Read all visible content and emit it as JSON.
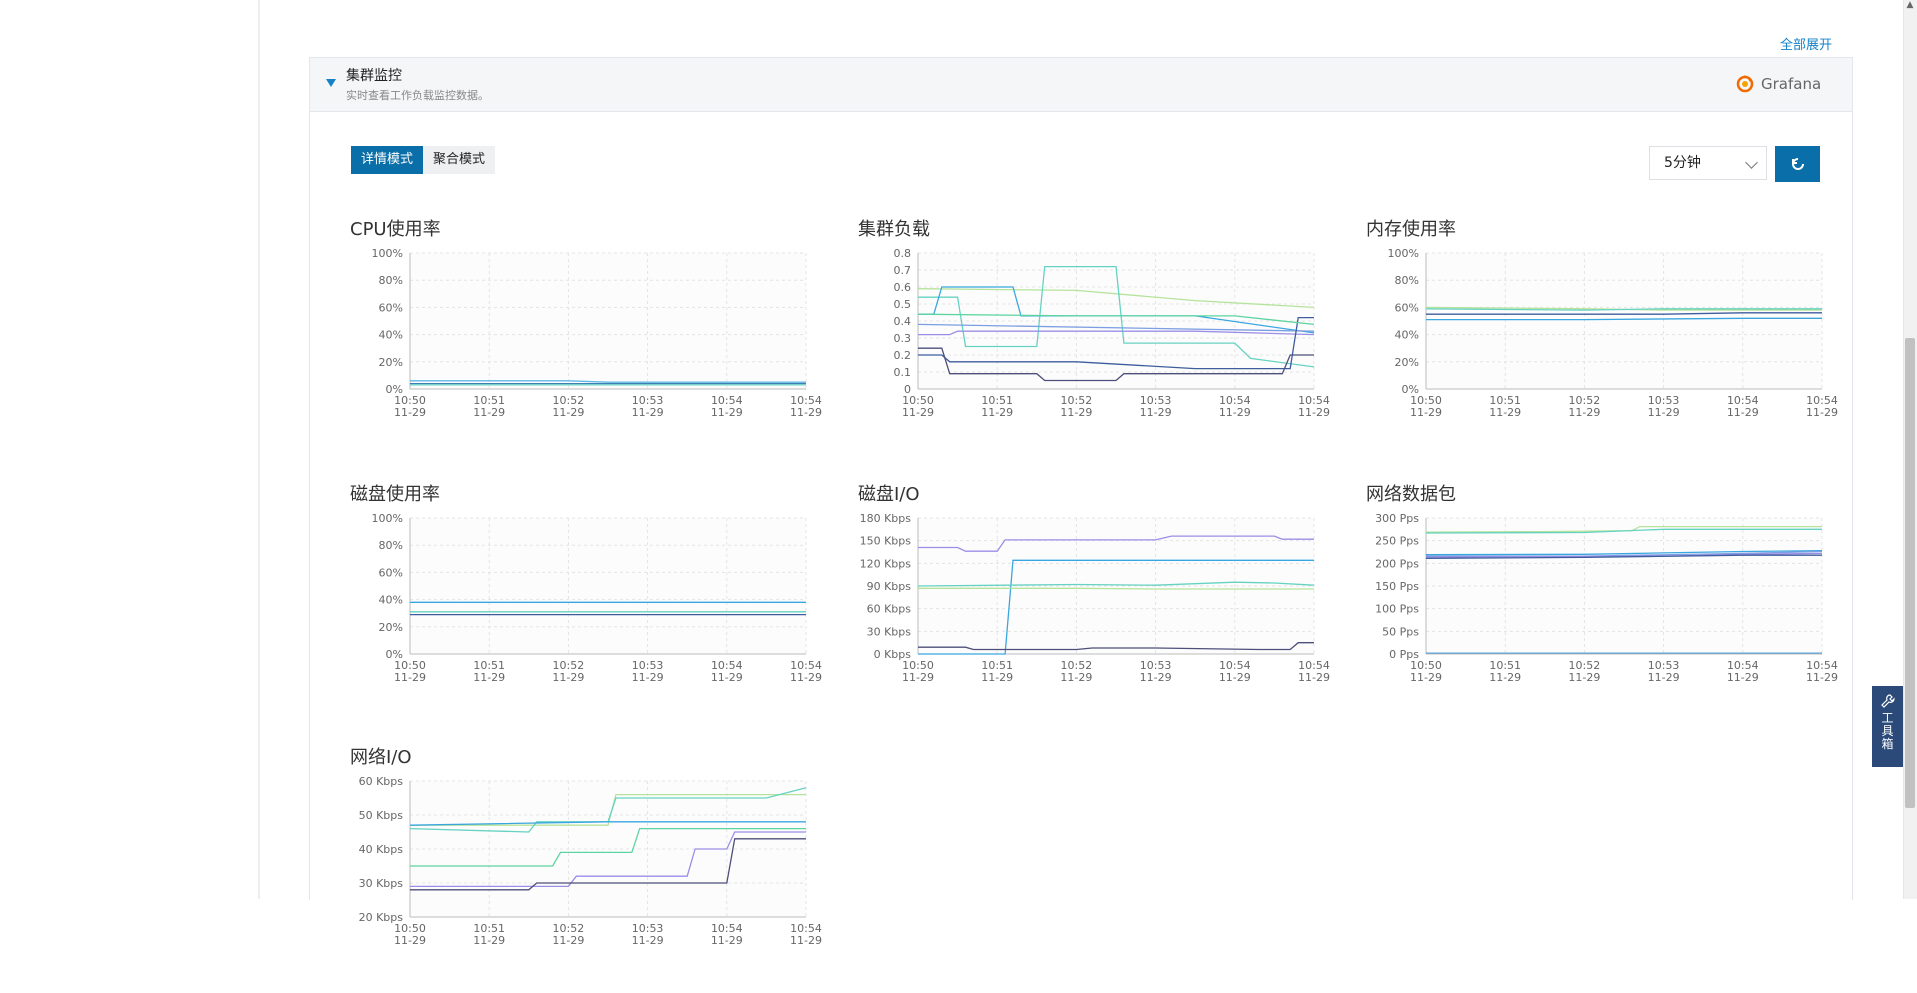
{
  "header": {
    "expand_all": "全部展开"
  },
  "section": {
    "title": "集群监控",
    "subtitle": "实时查看工作负载监控数据。",
    "grafana_label": "Grafana"
  },
  "modes": {
    "detail": "详情模式",
    "aggregate": "聚合模式",
    "active": "detail"
  },
  "time_range": {
    "selected": "5分钟"
  },
  "toolbox": {
    "label_1": "工",
    "label_2": "具",
    "label_3": "箱"
  },
  "colors": {
    "accent": "#0a6ea8",
    "link": "#1582c8",
    "grafana": "#f46800"
  },
  "icons": {
    "collapse": "caret-down-icon",
    "grafana": "grafana-logo-icon",
    "refresh": "refresh-icon",
    "dropdown": "chevron-down-icon",
    "toolbox": "wrench-icon"
  },
  "chart_data": [
    {
      "id": "cpu",
      "type": "line",
      "title": "CPU使用率",
      "x": [
        "10:50 11-29",
        "10:51 11-29",
        "10:52 11-29",
        "10:53 11-29",
        "10:54 11-29",
        "10:54 11-29"
      ],
      "yticks": [
        "100%",
        "80%",
        "60%",
        "40%",
        "20%",
        "0%"
      ],
      "ylim": [
        0,
        100
      ],
      "series": [
        {
          "color": "#5fb7e6",
          "points": [
            [
              0,
              6
            ],
            [
              1,
              6
            ],
            [
              2,
              6
            ],
            [
              2.5,
              5
            ],
            [
              3,
              5
            ],
            [
              4,
              5
            ],
            [
              5,
              5
            ]
          ]
        },
        {
          "color": "#3c7fb0",
          "points": [
            [
              0,
              4
            ],
            [
              1,
              4
            ],
            [
              2,
              4
            ],
            [
              3,
              4
            ],
            [
              4,
              4
            ],
            [
              5,
              4
            ]
          ]
        },
        {
          "color": "#6fd5c8",
          "points": [
            [
              0,
              3
            ],
            [
              1,
              3
            ],
            [
              2,
              3
            ],
            [
              3,
              3
            ],
            [
              4,
              3
            ],
            [
              5,
              3
            ]
          ]
        }
      ]
    },
    {
      "id": "load",
      "type": "line",
      "title": "集群负载",
      "x": [
        "10:50 11-29",
        "10:51 11-29",
        "10:52 11-29",
        "10:53 11-29",
        "10:54 11-29",
        "10:54 11-29"
      ],
      "yticks": [
        "0.8",
        "0.7",
        "0.6",
        "0.5",
        "0.4",
        "0.3",
        "0.2",
        "0.1",
        "0"
      ],
      "ylim": [
        0,
        0.8
      ],
      "series": [
        {
          "color": "#b6e39b",
          "points": [
            [
              0,
              0.59
            ],
            [
              2,
              0.58
            ],
            [
              3.5,
              0.52
            ],
            [
              5,
              0.48
            ]
          ]
        },
        {
          "color": "#66d2c2",
          "points": [
            [
              0,
              0.54
            ],
            [
              0.5,
              0.54
            ],
            [
              0.6,
              0.25
            ],
            [
              1.5,
              0.25
            ],
            [
              1.6,
              0.72
            ],
            [
              2.5,
              0.72
            ],
            [
              2.6,
              0.27
            ],
            [
              4,
              0.27
            ],
            [
              4.2,
              0.18
            ],
            [
              5,
              0.13
            ]
          ]
        },
        {
          "color": "#3aa6e0",
          "points": [
            [
              0,
              0.44
            ],
            [
              0.2,
              0.44
            ],
            [
              0.3,
              0.6
            ],
            [
              1.2,
              0.6
            ],
            [
              1.3,
              0.43
            ],
            [
              3.5,
              0.43
            ],
            [
              5,
              0.33
            ]
          ]
        },
        {
          "color": "#7c9ee2",
          "points": [
            [
              0,
              0.38
            ],
            [
              5,
              0.34
            ]
          ]
        },
        {
          "color": "#9a8ee6",
          "points": [
            [
              0,
              0.32
            ],
            [
              0.4,
              0.32
            ],
            [
              0.5,
              0.34
            ],
            [
              2,
              0.34
            ],
            [
              3.5,
              0.34
            ],
            [
              5,
              0.32
            ]
          ]
        },
        {
          "color": "#3e5d9e",
          "points": [
            [
              0,
              0.2
            ],
            [
              0.3,
              0.2
            ],
            [
              0.4,
              0.16
            ],
            [
              2,
              0.16
            ],
            [
              3.5,
              0.12
            ],
            [
              4.7,
              0.12
            ],
            [
              4.8,
              0.42
            ],
            [
              5,
              0.42
            ]
          ]
        },
        {
          "color": "#4d4f7a",
          "points": [
            [
              0,
              0.24
            ],
            [
              0.3,
              0.24
            ],
            [
              0.4,
              0.09
            ],
            [
              1.5,
              0.09
            ],
            [
              1.6,
              0.05
            ],
            [
              2.5,
              0.05
            ],
            [
              2.6,
              0.09
            ],
            [
              4.6,
              0.09
            ],
            [
              4.7,
              0.2
            ],
            [
              5,
              0.2
            ]
          ]
        },
        {
          "color": "#5dd4a0",
          "points": [
            [
              0,
              0.44
            ],
            [
              2,
              0.43
            ],
            [
              4,
              0.43
            ],
            [
              5,
              0.38
            ]
          ]
        }
      ]
    },
    {
      "id": "mem",
      "type": "line",
      "title": "内存使用率",
      "x": [
        "10:50 11-29",
        "10:51 11-29",
        "10:52 11-29",
        "10:53 11-29",
        "10:54 11-29",
        "10:54 11-29"
      ],
      "yticks": [
        "100%",
        "80%",
        "60%",
        "40%",
        "20%",
        "0%"
      ],
      "ylim": [
        0,
        100
      ],
      "series": [
        {
          "color": "#b6e39b",
          "points": [
            [
              0,
              60
            ],
            [
              2,
              59
            ],
            [
              3,
              58
            ],
            [
              4,
              58
            ],
            [
              5,
              58
            ]
          ]
        },
        {
          "color": "#66d2c2",
          "points": [
            [
              0,
              59
            ],
            [
              2,
              58
            ],
            [
              3,
              59
            ],
            [
              4,
              59
            ],
            [
              5,
              59
            ]
          ]
        },
        {
          "color": "#3e5d9e",
          "points": [
            [
              0,
              55
            ],
            [
              3,
              55
            ],
            [
              4,
              56
            ],
            [
              5,
              56
            ]
          ]
        },
        {
          "color": "#3aa6e0",
          "points": [
            [
              0,
              51
            ],
            [
              2,
              51
            ],
            [
              4,
              52
            ],
            [
              5,
              52
            ]
          ]
        }
      ]
    },
    {
      "id": "disk",
      "type": "line",
      "title": "磁盘使用率",
      "x": [
        "10:50 11-29",
        "10:51 11-29",
        "10:52 11-29",
        "10:53 11-29",
        "10:54 11-29",
        "10:54 11-29"
      ],
      "yticks": [
        "100%",
        "80%",
        "60%",
        "40%",
        "20%",
        "0%"
      ],
      "ylim": [
        0,
        100
      ],
      "series": [
        {
          "color": "#3aa6e0",
          "points": [
            [
              0,
              38
            ],
            [
              5,
              38
            ]
          ]
        },
        {
          "color": "#66d2c2",
          "points": [
            [
              0,
              31
            ],
            [
              5,
              31
            ]
          ]
        },
        {
          "color": "#3e5d9e",
          "points": [
            [
              0,
              29
            ],
            [
              5,
              29
            ]
          ]
        }
      ]
    },
    {
      "id": "diskio",
      "type": "line",
      "title": "磁盘I/O",
      "x": [
        "10:50 11-29",
        "10:51 11-29",
        "10:52 11-29",
        "10:53 11-29",
        "10:54 11-29",
        "10:54 11-29"
      ],
      "yticks": [
        "180 Kbps",
        "150 Kbps",
        "120 Kbps",
        "90 Kbps",
        "60 Kbps",
        "30 Kbps",
        "0 Kbps"
      ],
      "ylim": [
        0,
        180
      ],
      "series": [
        {
          "color": "#9a8ee6",
          "points": [
            [
              0,
              141
            ],
            [
              0.5,
              141
            ],
            [
              0.6,
              136
            ],
            [
              1,
              136
            ],
            [
              1.1,
              151
            ],
            [
              3,
              151
            ],
            [
              3.2,
              156
            ],
            [
              4.5,
              156
            ],
            [
              4.6,
              152
            ],
            [
              5,
              152
            ]
          ]
        },
        {
          "color": "#3aa6e0",
          "points": [
            [
              0,
              0
            ],
            [
              1.1,
              0
            ],
            [
              1.2,
              124
            ],
            [
              5,
              124
            ]
          ]
        },
        {
          "color": "#66d2c2",
          "points": [
            [
              0,
              90
            ],
            [
              2,
              92
            ],
            [
              3,
              91
            ],
            [
              4,
              95
            ],
            [
              4.5,
              94
            ],
            [
              5,
              91
            ]
          ]
        },
        {
          "color": "#b6e39b",
          "points": [
            [
              0,
              87
            ],
            [
              2,
              87
            ],
            [
              3,
              86
            ],
            [
              5,
              86
            ]
          ]
        },
        {
          "color": "#4d4f7a",
          "points": [
            [
              0,
              9
            ],
            [
              0.6,
              9
            ],
            [
              0.7,
              6
            ],
            [
              2,
              6
            ],
            [
              2.2,
              8
            ],
            [
              3,
              8
            ],
            [
              4.3,
              6
            ],
            [
              4.7,
              6
            ],
            [
              4.8,
              15
            ],
            [
              5,
              15
            ]
          ]
        }
      ]
    },
    {
      "id": "netpkt",
      "type": "line",
      "title": "网络数据包",
      "x": [
        "10:50 11-29",
        "10:51 11-29",
        "10:52 11-29",
        "10:53 11-29",
        "10:54 11-29",
        "10:54 11-29"
      ],
      "yticks": [
        "300 Pps",
        "250 Pps",
        "200 Pps",
        "150 Pps",
        "100 Pps",
        "50 Pps",
        "0 Pps"
      ],
      "ylim": [
        0,
        300
      ],
      "series": [
        {
          "color": "#b6e39b",
          "points": [
            [
              0,
              269
            ],
            [
              1.5,
              270
            ],
            [
              2.6,
              272
            ],
            [
              2.7,
              281
            ],
            [
              5,
              281
            ]
          ]
        },
        {
          "color": "#66d2c2",
          "points": [
            [
              0,
              267
            ],
            [
              2,
              268
            ],
            [
              3,
              275
            ],
            [
              5,
              275
            ]
          ]
        },
        {
          "color": "#3aa6e0",
          "points": [
            [
              0,
              219
            ],
            [
              2,
              220
            ],
            [
              3,
              223
            ],
            [
              4,
              226
            ],
            [
              5,
              228
            ]
          ]
        },
        {
          "color": "#7c9ee2",
          "points": [
            [
              0,
              216
            ],
            [
              2,
              216
            ],
            [
              4,
              222
            ],
            [
              5,
              226
            ]
          ]
        },
        {
          "color": "#9a8ee6",
          "points": [
            [
              0,
              214
            ],
            [
              3,
              216
            ],
            [
              4,
              220
            ],
            [
              5,
              222
            ]
          ]
        },
        {
          "color": "#3e5d9e",
          "points": [
            [
              0,
              211
            ],
            [
              2,
              213
            ],
            [
              4,
              218
            ],
            [
              5,
              218
            ]
          ]
        },
        {
          "color": "#5fa3d6",
          "points": [
            [
              0,
              2
            ],
            [
              5,
              2
            ]
          ]
        }
      ]
    },
    {
      "id": "netio",
      "type": "line",
      "title": "网络I/O",
      "x": [
        "10:50 11-29",
        "10:51 11-29",
        "10:52 11-29",
        "10:53 11-29",
        "10:54 11-29",
        "10:54 11-29"
      ],
      "yticks": [
        "60 Kbps",
        "50 Kbps",
        "40 Kbps",
        "30 Kbps",
        "20 Kbps"
      ],
      "ylim": [
        20,
        60
      ],
      "series": [
        {
          "color": "#b6e39b",
          "points": [
            [
              0,
              47
            ],
            [
              2.5,
              47
            ],
            [
              2.6,
              56
            ],
            [
              5,
              56
            ]
          ]
        },
        {
          "color": "#66d2c2",
          "points": [
            [
              0,
              46
            ],
            [
              1.5,
              45
            ],
            [
              1.6,
              48
            ],
            [
              2.5,
              48
            ],
            [
              2.6,
              55
            ],
            [
              4,
              55
            ],
            [
              4.5,
              55
            ],
            [
              5,
              58
            ]
          ]
        },
        {
          "color": "#3aa6e0",
          "points": [
            [
              0,
              47
            ],
            [
              2.5,
              48
            ],
            [
              4,
              48
            ],
            [
              5,
              48
            ]
          ]
        },
        {
          "color": "#5dd4a0",
          "points": [
            [
              0,
              35
            ],
            [
              1.8,
              35
            ],
            [
              1.9,
              39
            ],
            [
              2.8,
              39
            ],
            [
              2.9,
              46
            ],
            [
              5,
              46
            ]
          ]
        },
        {
          "color": "#9a8ee6",
          "points": [
            [
              0,
              29
            ],
            [
              2,
              29
            ],
            [
              2.1,
              32
            ],
            [
              3.5,
              32
            ],
            [
              3.6,
              40
            ],
            [
              4,
              40
            ],
            [
              4.1,
              45
            ],
            [
              5,
              45
            ]
          ]
        },
        {
          "color": "#4d4f7a",
          "points": [
            [
              0,
              28
            ],
            [
              1.5,
              28
            ],
            [
              1.6,
              30
            ],
            [
              4,
              30
            ],
            [
              4.1,
              43
            ],
            [
              5,
              43
            ]
          ]
        }
      ]
    }
  ]
}
